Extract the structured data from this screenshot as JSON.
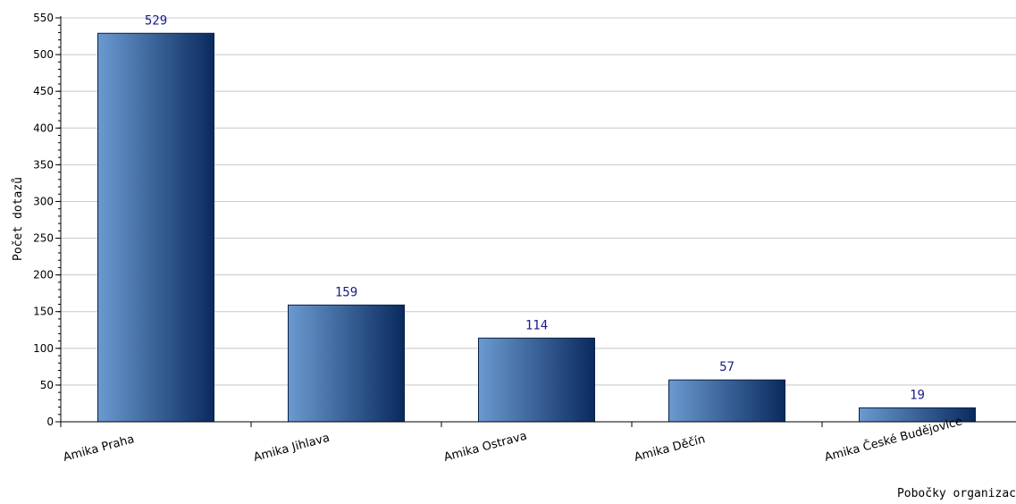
{
  "chart_data": {
    "type": "bar",
    "title": "",
    "xlabel": "Pobočky organizac",
    "ylabel": "Počet dotazů",
    "categories": [
      "Amika Praha",
      "Amika Jihlava",
      "Amika Ostrava",
      "Amika Děčín",
      "Amika České Budějovice"
    ],
    "values": [
      529,
      159,
      114,
      57,
      19
    ],
    "ylim": [
      0,
      550
    ],
    "ytick_step": 50,
    "grid": true,
    "bar_color_light": "#6a9ad0",
    "bar_color_dark": "#0a2a5e",
    "value_label_color": "#1a1a8c"
  }
}
